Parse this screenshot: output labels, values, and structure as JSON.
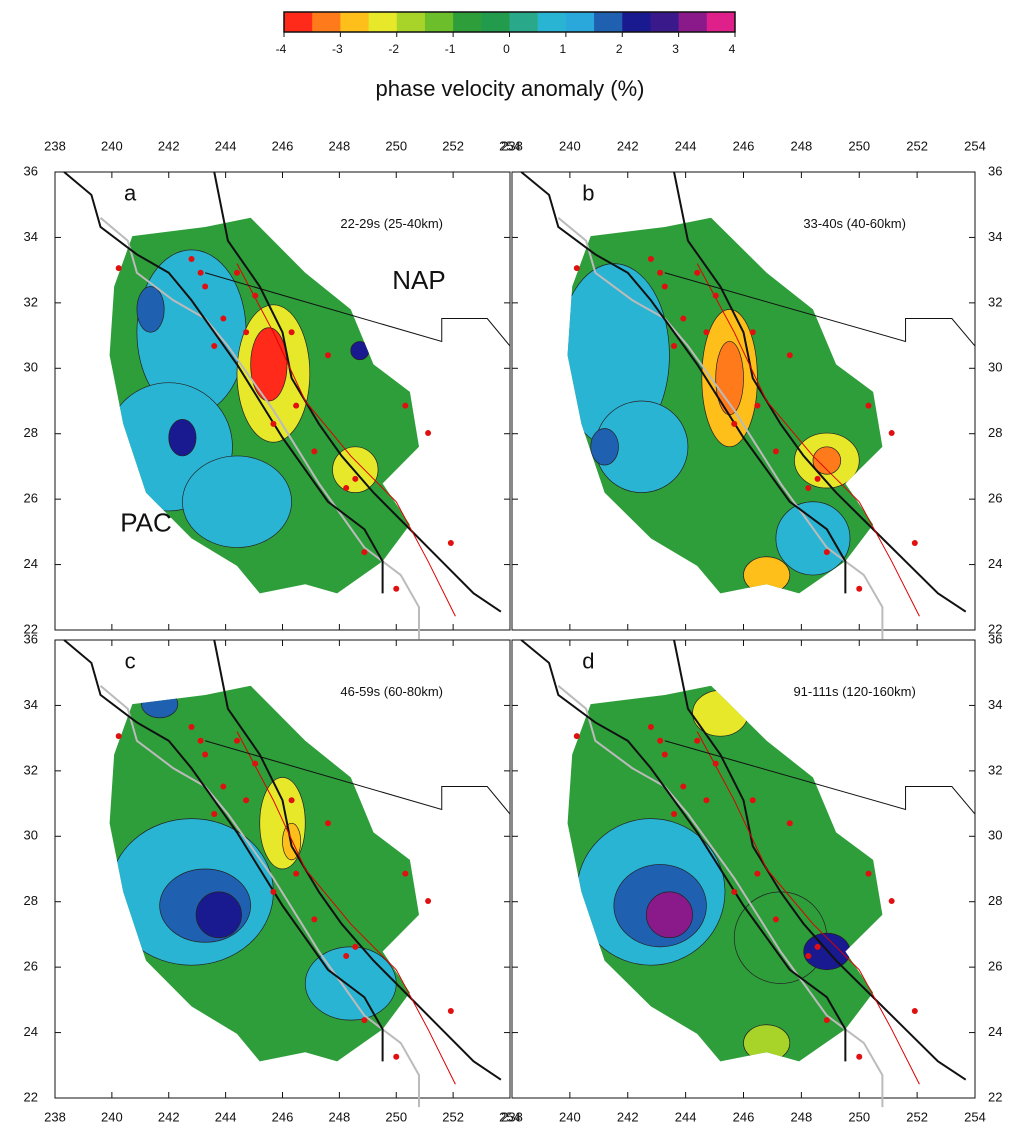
{
  "colorbar": {
    "label": "phase velocity anomaly (%)",
    "lim": [
      -4,
      4
    ],
    "ticks": [
      -4,
      -3,
      -2,
      -1,
      0,
      1,
      2,
      3,
      4
    ],
    "colors": [
      "#ff2a1a",
      "#ff7a1a",
      "#ffbf1a",
      "#e8e82a",
      "#a8d42a",
      "#6cbf2a",
      "#2e9e3a",
      "#229c4c",
      "#2aa88a",
      "#2ab4d4",
      "#2aa8dc",
      "#2060b0",
      "#1a1a90",
      "#3a1a8a",
      "#8a1a8a",
      "#e0208a"
    ]
  },
  "map": {
    "xlim": [
      238,
      254
    ],
    "ylim": [
      22,
      36
    ],
    "xticks": [
      238,
      240,
      242,
      244,
      246,
      248,
      250,
      252,
      254
    ],
    "yticks": [
      22,
      24,
      26,
      28,
      30,
      32,
      34,
      36
    ]
  },
  "panels": [
    {
      "label": "a",
      "period": "22-29s (25-40km)"
    },
    {
      "label": "b",
      "period": "33-40s (40-60km)"
    },
    {
      "label": "c",
      "period": "46-59s (60-80km)"
    },
    {
      "label": "d",
      "period": "91-111s (120-160km)"
    }
  ],
  "plate_labels": {
    "north": "NAP",
    "pacific": "PAC"
  }
}
